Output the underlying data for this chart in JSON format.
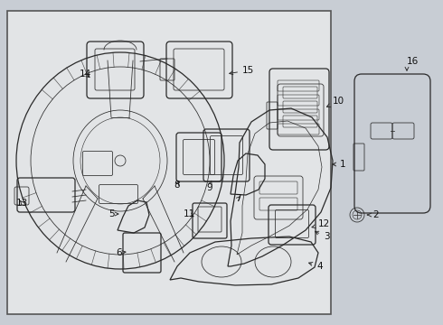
{
  "fig_width": 4.9,
  "fig_height": 3.6,
  "dpi": 100,
  "bg_color": "#c8cdd4",
  "box_facecolor": "#e8e8e8",
  "box_edgecolor": "#555555",
  "line_color": "#2a2a2a",
  "label_color": "#111111",
  "label_fontsize": 7.5,
  "lw_main": 0.9,
  "lw_thin": 0.55,
  "lw_arrow": 0.65
}
